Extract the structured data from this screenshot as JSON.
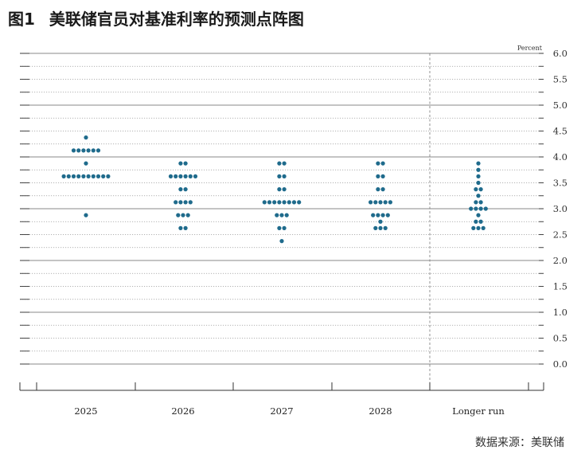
{
  "header": {
    "figure_no": "图1",
    "title": "美联储官员对基准利率的预测点阵图"
  },
  "source": "数据来源：美联储",
  "dot_color": "#1f6b8c",
  "chart_data": {
    "type": "scatter",
    "unit_label": "Percent",
    "categories": [
      "2025",
      "2026",
      "2027",
      "2028",
      "Longer run"
    ],
    "ylim": [
      0.0,
      6.0
    ],
    "y_ticks": [
      "0.0",
      "0.5",
      "1.0",
      "1.5",
      "2.0",
      "2.5",
      "3.0",
      "3.5",
      "4.0",
      "4.5",
      "5.0",
      "5.5",
      "6.0"
    ],
    "grid": true,
    "legend": "none",
    "dots": [
      {
        "category": "2025",
        "counts": [
          {
            "y": 4.375,
            "n": 1
          },
          {
            "y": 4.125,
            "n": 6
          },
          {
            "y": 3.875,
            "n": 1
          },
          {
            "y": 3.625,
            "n": 10
          },
          {
            "y": 2.875,
            "n": 1
          }
        ]
      },
      {
        "category": "2026",
        "counts": [
          {
            "y": 3.875,
            "n": 2
          },
          {
            "y": 3.625,
            "n": 6
          },
          {
            "y": 3.375,
            "n": 2
          },
          {
            "y": 3.125,
            "n": 4
          },
          {
            "y": 2.875,
            "n": 3
          },
          {
            "y": 2.625,
            "n": 2
          }
        ]
      },
      {
        "category": "2027",
        "counts": [
          {
            "y": 3.875,
            "n": 2
          },
          {
            "y": 3.625,
            "n": 2
          },
          {
            "y": 3.375,
            "n": 2
          },
          {
            "y": 3.125,
            "n": 8
          },
          {
            "y": 2.875,
            "n": 3
          },
          {
            "y": 2.625,
            "n": 2
          },
          {
            "y": 2.375,
            "n": 1
          }
        ]
      },
      {
        "category": "2028",
        "counts": [
          {
            "y": 3.875,
            "n": 2
          },
          {
            "y": 3.625,
            "n": 2
          },
          {
            "y": 3.375,
            "n": 2
          },
          {
            "y": 3.125,
            "n": 5
          },
          {
            "y": 2.875,
            "n": 4
          },
          {
            "y": 2.75,
            "n": 1
          },
          {
            "y": 2.625,
            "n": 3
          }
        ]
      },
      {
        "category": "Longer run",
        "counts": [
          {
            "y": 3.875,
            "n": 1
          },
          {
            "y": 3.75,
            "n": 1
          },
          {
            "y": 3.625,
            "n": 1
          },
          {
            "y": 3.5,
            "n": 1
          },
          {
            "y": 3.375,
            "n": 2
          },
          {
            "y": 3.25,
            "n": 1
          },
          {
            "y": 3.125,
            "n": 2
          },
          {
            "y": 3.0,
            "n": 4
          },
          {
            "y": 2.875,
            "n": 1
          },
          {
            "y": 2.75,
            "n": 2
          },
          {
            "y": 2.625,
            "n": 3
          }
        ]
      }
    ]
  }
}
